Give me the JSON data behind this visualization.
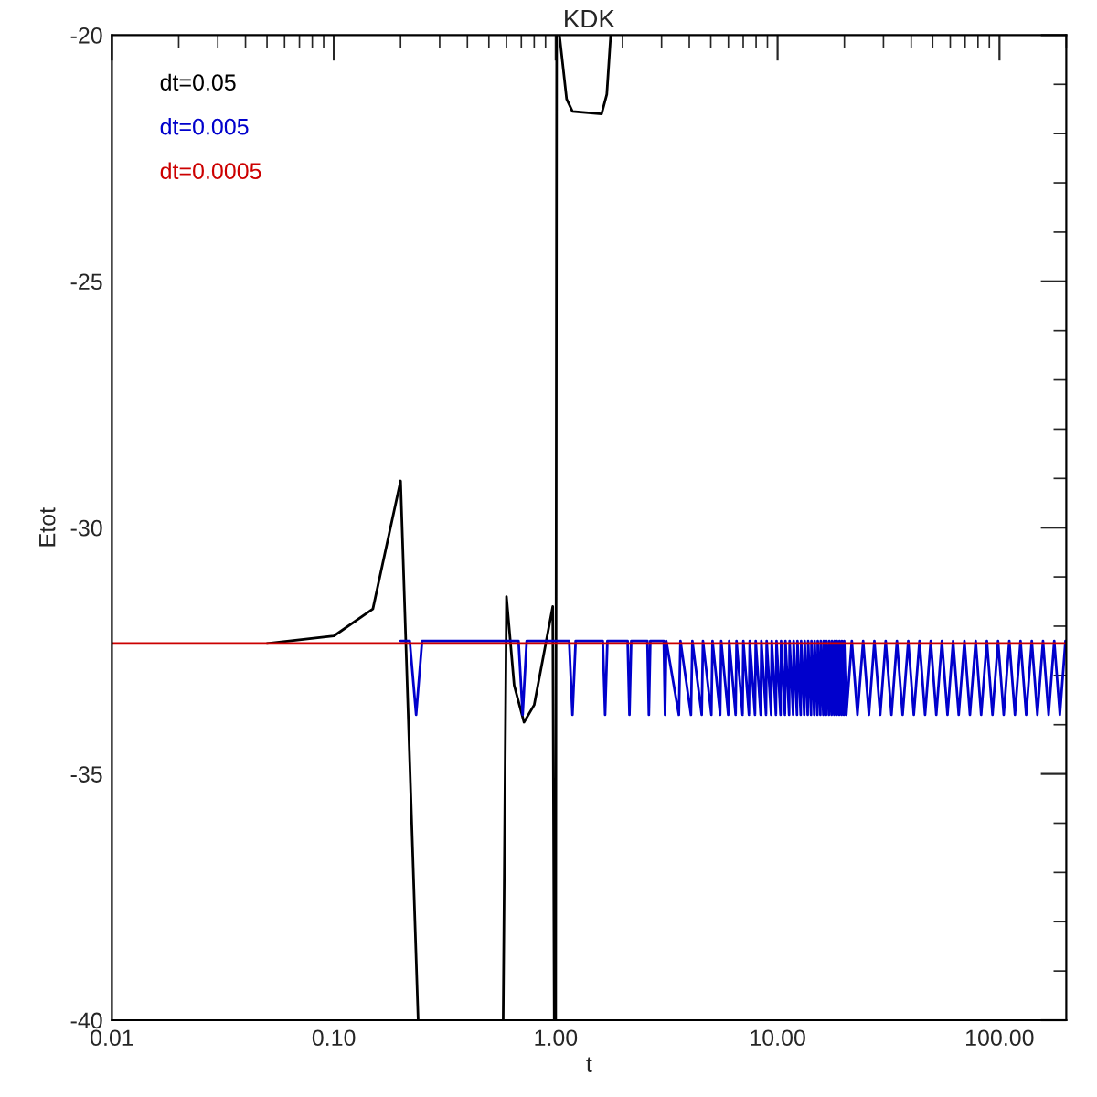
{
  "chart_data": {
    "type": "line",
    "title": "KDK",
    "xlabel": "t",
    "ylabel": "Etot",
    "log": "x",
    "xlim": [
      0.01,
      200
    ],
    "ylim": [
      -40,
      -20
    ],
    "xticks": [
      {
        "value": 0.01,
        "label": "0.01"
      },
      {
        "value": 0.1,
        "label": "0.10"
      },
      {
        "value": 1,
        "label": "1.00"
      },
      {
        "value": 10,
        "label": "10.00"
      },
      {
        "value": 100,
        "label": "100.00"
      }
    ],
    "yticks": [
      -40,
      -35,
      -30,
      -25,
      -20
    ],
    "grid": false,
    "legend": "top left",
    "marker": "none",
    "line_style": "solid",
    "series": [
      {
        "name": "dt=0.05",
        "color": "#000000",
        "x": [
          0.05,
          0.1,
          0.15,
          0.2,
          0.24,
          0.4,
          0.58,
          0.6,
          0.65,
          0.72,
          0.8,
          0.97,
          0.985,
          0.99,
          1.0,
          1.01,
          1.03,
          1.04,
          1.12,
          1.19,
          1.61,
          1.7,
          1.77
        ],
        "values": [
          -32.35,
          -32.2,
          -31.65,
          -29.05,
          -40,
          null,
          -40,
          -31.4,
          -33.2,
          -33.95,
          -33.6,
          -31.6,
          -40,
          null,
          -40,
          -20,
          null,
          -20,
          -21.3,
          -21.55,
          -21.6,
          -21.2,
          -20
        ]
      },
      {
        "name": "dt=0.005",
        "color": "#0000cc",
        "x": [
          0.2,
          0.22,
          0.235,
          0.25,
          0.68,
          0.71,
          0.74,
          1.15,
          1.19,
          1.23,
          1.63,
          1.67,
          1.71,
          2.11,
          2.15,
          2.19,
          2.59,
          2.63,
          2.67,
          3.07,
          3.11,
          3.15,
          3.59,
          3.65,
          4.07,
          4.13,
          4.55,
          4.61,
          5.03,
          5.09,
          5.51,
          5.57,
          5.99,
          6.05,
          6.47,
          6.53,
          6.95,
          7.01,
          7.43,
          7.49,
          7.91,
          7.97,
          8.39,
          8.45,
          8.87,
          8.93,
          9.35,
          9.41,
          9.83,
          9.89,
          10.31,
          10.37,
          10.79,
          10.85,
          11.27,
          11.33,
          11.75,
          11.81,
          12.23,
          12.29,
          12.71,
          12.77,
          13.19,
          13.25,
          13.67,
          13.73,
          14.15,
          14.21,
          14.63,
          14.69,
          15.11,
          15.17,
          15.59,
          15.65,
          16.07,
          16.13,
          16.55,
          16.61,
          17.03,
          17.09,
          17.51,
          17.57,
          17.99,
          18.05,
          18.47,
          18.53,
          18.95,
          19.01,
          19.43,
          19.49,
          19.91,
          19.97,
          20.4,
          21.6,
          22.9,
          24.3,
          25.8,
          27.3,
          29.0,
          30.7,
          32.6,
          34.5,
          36.6,
          38.8,
          41.1,
          43.6,
          46.2,
          49.0,
          51.9,
          55.0,
          58.3,
          61.8,
          65.5,
          69.5,
          73.6,
          78.1,
          82.7,
          87.7,
          93.0,
          98.5,
          104.5,
          110.7,
          117.4,
          124.4,
          131.9,
          139.8,
          148.2,
          157.1,
          166.5,
          176.5,
          187.1,
          198.3
        ],
        "values": [
          -32.3,
          -32.3,
          -33.8,
          -32.3,
          -32.3,
          -33.8,
          -32.3,
          -32.3,
          -33.8,
          -32.3,
          -32.3,
          -33.8,
          -32.3,
          -32.3,
          -33.8,
          -32.3,
          -32.3,
          -33.8,
          -32.3,
          -32.3,
          -33.8,
          -32.3,
          -33.8,
          -32.3,
          -33.8,
          -32.3,
          -33.8,
          -32.3,
          -33.8,
          -32.3,
          -33.8,
          -32.3,
          -33.8,
          -32.3,
          -33.8,
          -32.3,
          -33.8,
          -32.3,
          -33.8,
          -32.3,
          -33.8,
          -32.3,
          -33.8,
          -32.3,
          -33.8,
          -32.3,
          -33.8,
          -32.3,
          -33.8,
          -32.3,
          -33.8,
          -32.3,
          -33.8,
          -32.3,
          -33.8,
          -32.3,
          -33.8,
          -32.3,
          -33.8,
          -32.3,
          -33.8,
          -32.3,
          -33.8,
          -32.3,
          -33.8,
          -32.3,
          -33.8,
          -32.3,
          -33.8,
          -32.3,
          -33.8,
          -32.3,
          -33.8,
          -32.3,
          -33.8,
          -32.3,
          -33.8,
          -32.3,
          -33.8,
          -32.3,
          -33.8,
          -32.3,
          -33.8,
          -32.3,
          -33.8,
          -32.3,
          -33.8,
          -32.3,
          -33.8,
          -32.3,
          -33.8,
          -32.3,
          -33.8,
          -32.3,
          -33.8,
          -32.3,
          -33.8,
          -32.3,
          -33.8,
          -32.3,
          -33.8,
          -32.3,
          -33.8,
          -32.3,
          -33.8,
          -32.3,
          -33.8,
          -32.3,
          -33.8,
          -32.3,
          -33.8,
          -32.3,
          -33.8,
          -32.3,
          -33.8,
          -32.3,
          -33.8,
          -32.3,
          -33.8,
          -32.3,
          -33.8,
          -32.3,
          -33.8,
          -32.3,
          -33.8,
          -32.3,
          -33.8,
          -32.3,
          -33.8,
          -32.3,
          -33.8,
          -32.3
        ]
      },
      {
        "name": "dt=0.0005",
        "color": "#cc0000",
        "x": [
          0.01,
          200
        ],
        "values": [
          -32.35,
          -32.35
        ]
      }
    ]
  }
}
